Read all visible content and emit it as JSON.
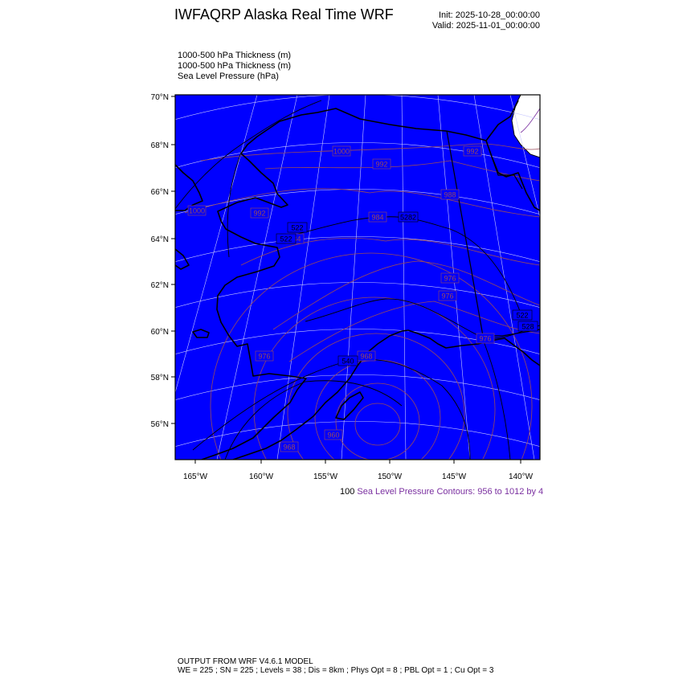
{
  "header": {
    "title": "IWFAQRP Alaska Real Time WRF",
    "init": "Init: 2025-10-28_00:00:00",
    "valid": "Valid: 2025-11-01_00:00:00"
  },
  "fields": [
    "1000-500 hPa Thickness   (m)",
    "1000-500 hPa Thickness   (m)",
    "Sea Level Pressure   (hPa)"
  ],
  "map": {
    "ocean_land_color": "#0000ff",
    "coast_color": "#000000",
    "slp_contour_color": "#9a4a5a",
    "thickness_contour_color": "#000000",
    "missing_color": "#ffffff",
    "lat_labels": [
      "70°N",
      "68°N",
      "66°N",
      "64°N",
      "62°N",
      "60°N",
      "58°N",
      "56°N"
    ],
    "lon_labels": [
      "165°W",
      "160°W",
      "155°W",
      "150°W",
      "145°W",
      "140°W"
    ],
    "slp_labels": [
      "1000",
      "992",
      "992",
      "988",
      "1000",
      "992",
      "984",
      "984",
      "976",
      "976",
      "976",
      "976",
      "968",
      "960",
      "968"
    ],
    "thickness_labels": [
      "522",
      "522",
      "5282",
      "522",
      "528",
      "540"
    ]
  },
  "contour_info": {
    "prefix": "100",
    "text": "Sea Level Pressure Contours: 956 to 1012 by 4"
  },
  "footer": {
    "line1": "OUTPUT FROM WRF V4.6.1 MODEL",
    "line2": "WE = 225 ; SN = 225 ; Levels = 38 ; Dis = 8km ; Phys Opt = 8 ; PBL Opt = 1 ; Cu Opt = 3"
  }
}
